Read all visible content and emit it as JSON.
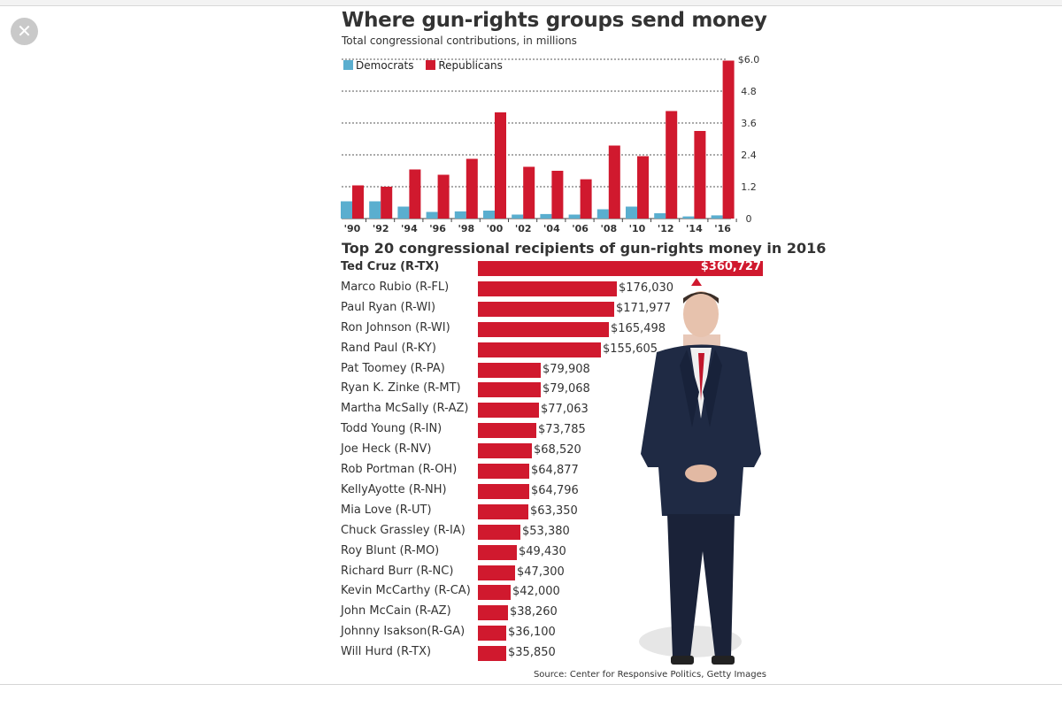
{
  "close_icon": "close-icon",
  "title": "Where gun-rights groups send money",
  "subtitle": "Total congressional contributions, in millions",
  "legend": {
    "democrats": "Democrats",
    "republicans": "Republicans"
  },
  "colors": {
    "democrats": "#5aaecf",
    "republicans": "#d0192e"
  },
  "chart_data": [
    {
      "type": "bar",
      "title": "Where gun-rights groups send money",
      "subtitle": "Total congressional contributions, in millions",
      "categories": [
        "'90",
        "'92",
        "'94",
        "'96",
        "'98",
        "'00",
        "'02",
        "'04",
        "'06",
        "'08",
        "'10",
        "'12",
        "'14",
        "'16"
      ],
      "series": [
        {
          "name": "Democrats",
          "values": [
            0.65,
            0.65,
            0.45,
            0.25,
            0.27,
            0.3,
            0.15,
            0.17,
            0.15,
            0.35,
            0.45,
            0.2,
            0.08,
            0.12
          ]
        },
        {
          "name": "Republicans",
          "values": [
            1.25,
            1.2,
            1.85,
            1.65,
            2.25,
            4.0,
            1.95,
            1.8,
            1.48,
            2.75,
            2.35,
            4.05,
            3.3,
            5.95
          ]
        }
      ],
      "yticks": [
        "$6.0",
        "4.8",
        "3.6",
        "2.4",
        "1.2",
        "0"
      ],
      "ylim": [
        0,
        6.0
      ],
      "grid": true,
      "legend_position": "top-left"
    },
    {
      "type": "bar",
      "orientation": "horizontal",
      "title": "Top 20 congressional recipients of gun-rights money in 2016",
      "categories": [
        "Ted Cruz (R-TX)",
        "Marco Rubio (R-FL)",
        "Paul Ryan (R-WI)",
        "Ron Johnson (R-WI)",
        "Rand Paul (R-KY)",
        "Pat Toomey (R-PA)",
        "Ryan K. Zinke (R-MT)",
        "Martha McSally (R-AZ)",
        "Todd Young (R-IN)",
        "Joe Heck (R-NV)",
        "Rob Portman (R-OH)",
        "KellyAyotte (R-NH)",
        "Mia Love (R-UT)",
        "Chuck Grassley (R-IA)",
        "Roy Blunt (R-MO)",
        "Richard Burr (R-NC)",
        "Kevin McCarthy (R-CA)",
        "John McCain (R-AZ)",
        "Johnny  Isakson(R-GA)",
        "Will Hurd (R-TX)"
      ],
      "values": [
        360727,
        176030,
        171977,
        165498,
        155605,
        79908,
        79068,
        77063,
        73785,
        68520,
        64877,
        64796,
        63350,
        53380,
        49430,
        47300,
        42000,
        38260,
        36100,
        35850
      ],
      "value_labels": [
        "$360,727",
        "$176,030",
        "$171,977",
        "$165,498",
        "$155,605",
        "$79,908",
        "$79,068",
        "$77,063",
        "$73,785",
        "$68,520",
        "$64,877",
        "$64,796",
        "$63,350",
        "$53,380",
        "$49,430",
        "$47,300",
        "$42,000",
        "$38,260",
        "$36,100",
        "$35,850"
      ]
    }
  ],
  "photo_icon": "person-photo-icon",
  "source": "Source: Center for Responsive Politics, Getty Images"
}
